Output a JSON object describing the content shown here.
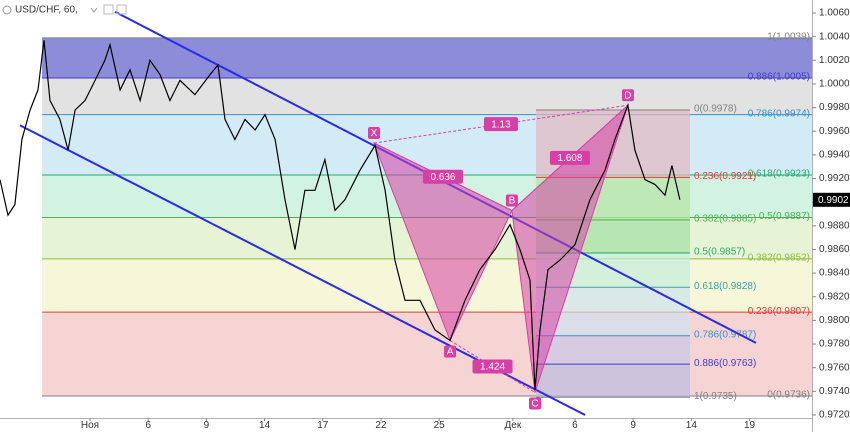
{
  "chart_data": {
    "type": "line",
    "title": "USD/CHF, 60,",
    "color": "#000000",
    "x": [
      -4.64,
      -4.23,
      -3.87,
      -3.51,
      -3.09,
      -2.68,
      -2.37,
      -2.06,
      -1.55,
      -1.13,
      -0.77,
      -0.26,
      0.26,
      0.77,
      1.03,
      1.55,
      2.06,
      2.58,
      3.09,
      3.61,
      4.12,
      4.64,
      5.41,
      6.19,
      6.6,
      6.96,
      7.47,
      7.99,
      8.51,
      9.02,
      9.54,
      10.05,
      10.57,
      11.08,
      11.6,
      12.11,
      12.63,
      13.14,
      13.92,
      14.69,
      15.21,
      15.72,
      16.24,
      17.01,
      17.78,
      18.56,
      19.33,
      20.1,
      20.88,
      21.65,
      22.16,
      22.68,
      22.94,
      23.2,
      23.61,
      24.23,
      25,
      25.77,
      26.55,
      27.06,
      27.73,
      28.09,
      28.61,
      29.12,
      29.64,
      30,
      30.41
    ],
    "values": [
      0.9919,
      0.9889,
      0.9898,
      0.9953,
      0.9978,
      0.9995,
      1.0037,
      0.9986,
      0.997,
      0.9944,
      0.9978,
      0.9986,
      1.0003,
      1.002,
      1.0033,
      0.9995,
      1.0012,
      0.9986,
      1.002,
      1.0008,
      0.9986,
      1.0003,
      0.9991,
      1.0008,
      1.0016,
      0.997,
      0.9953,
      0.997,
      0.9961,
      0.9974,
      0.9953,
      0.9902,
      0.986,
      0.991,
      0.991,
      0.9936,
      0.9893,
      0.9902,
      0.9927,
      0.9948,
      0.991,
      0.9851,
      0.9817,
      0.9817,
      0.9792,
      0.9783,
      0.9817,
      0.9843,
      0.986,
      0.9881,
      0.986,
      0.9834,
      0.9741,
      0.9792,
      0.9843,
      0.9851,
      0.9864,
      0.9902,
      0.9927,
      0.9953,
      0.9982,
      0.9944,
      0.9919,
      0.9915,
      0.9906,
      0.9931,
      0.9902
    ],
    "xlim": [
      -4.64,
      37.22
    ],
    "ylim": [
      0.97056,
      1.0071
    ],
    "xticks": [
      {
        "value": 0,
        "label": "Ноя"
      },
      {
        "value": 3,
        "label": "6"
      },
      {
        "value": 6,
        "label": "9"
      },
      {
        "value": 9,
        "label": "14"
      },
      {
        "value": 12,
        "label": "17"
      },
      {
        "value": 15,
        "label": "22"
      },
      {
        "value": 18,
        "label": "25"
      },
      {
        "value": 21.8,
        "label": "Дек"
      },
      {
        "value": 25,
        "label": "6"
      },
      {
        "value": 28,
        "label": "9"
      },
      {
        "value": 31,
        "label": "14"
      },
      {
        "value": 34,
        "label": "19"
      }
    ],
    "yticks": [
      {
        "value": 1.006,
        "label": "1.0060"
      },
      {
        "value": 1.004,
        "label": "1.0040"
      },
      {
        "value": 1.002,
        "label": "1.0020"
      },
      {
        "value": 1.0,
        "label": "1.0000"
      },
      {
        "value": 0.998,
        "label": "0.9980"
      },
      {
        "value": 0.996,
        "label": "0.9960"
      },
      {
        "value": 0.994,
        "label": "0.9940"
      },
      {
        "value": 0.992,
        "label": "0.9920"
      },
      {
        "value": 0.99,
        "label": "0.9900"
      },
      {
        "value": 0.988,
        "label": "0.9880"
      },
      {
        "value": 0.986,
        "label": "0.9860"
      },
      {
        "value": 0.984,
        "label": "0.9840"
      },
      {
        "value": 0.982,
        "label": "0.9820"
      },
      {
        "value": 0.98,
        "label": "0.9800"
      },
      {
        "value": 0.978,
        "label": "0.9780"
      },
      {
        "value": 0.976,
        "label": "0.9760"
      },
      {
        "value": 0.974,
        "label": "0.9740"
      },
      {
        "value": 0.972,
        "label": "0.9720"
      }
    ],
    "last_price": 0.9902,
    "fib_main": {
      "x": [
        -2.47,
        37.22
      ],
      "levels": [
        {
          "value": 1.0039,
          "label": "1(1.0039)",
          "color": "#808080",
          "fill": "#8c8cd9"
        },
        {
          "value": 1.0005,
          "label": "0.886(1.0005)",
          "color": "#3f3fbf",
          "fill": "#e2e2e2"
        },
        {
          "value": 0.9974,
          "label": "0.786(0.9974)",
          "color": "#3a8fc9",
          "fill": "#d3ebf7"
        },
        {
          "value": 0.9923,
          "label": "0.618(0.9923)",
          "color": "#2aa86a",
          "fill": "#d2f2e2"
        },
        {
          "value": 0.9887,
          "label": "0.5(0.9887)",
          "color": "#4caf50",
          "fill": "#e6f4d5"
        },
        {
          "value": 0.9852,
          "label": "0.382(0.9852)",
          "color": "#8fbc3f",
          "fill": "#f6f6d8"
        },
        {
          "value": 0.9807,
          "label": "0.236(0.9807)",
          "color": "#e23c3c",
          "fill": "#f7d4d4"
        },
        {
          "value": 0.9736,
          "label": "0(0.9736)",
          "color": "#808080"
        }
      ]
    },
    "fib_second": {
      "x": [
        22.99,
        30.93
      ],
      "levels": [
        {
          "value": 0.9978,
          "label": "0(0.9978)",
          "color": "#808080",
          "fill": "#e3b8c0"
        },
        {
          "value": 0.9921,
          "label": "0.236(0.9921)",
          "color": "#e23c3c",
          "fill": "#b5e6a5"
        },
        {
          "value": 0.9885,
          "label": "0.382(0.9885)",
          "color": "#4caf50",
          "fill": "#a3e0a3"
        },
        {
          "value": 0.9857,
          "label": "0.5(0.9857)",
          "color": "#2aa86a",
          "fill": "#c4eedd"
        },
        {
          "value": 0.9828,
          "label": "0.618(0.9828)",
          "color": "#3aa3a3",
          "fill": "#cfe2ef"
        },
        {
          "value": 0.9787,
          "label": "0.786(0.9787)",
          "color": "#3a8fc9",
          "fill": "#c8c8e8"
        },
        {
          "value": 0.9763,
          "label": "0.886(0.9763)",
          "color": "#3f3fbf",
          "fill": "#bcbce0"
        },
        {
          "value": 0.9735,
          "label": "1(0.9735)",
          "color": "#808080"
        }
      ]
    },
    "channel": [
      {
        "x": [
          1.29,
          34.33
        ],
        "y": [
          1.0061,
          0.9781
        ]
      },
      {
        "x": [
          -3.61,
          25.52
        ],
        "y": [
          0.9965,
          0.972
        ]
      }
    ],
    "channel_color": "#2a2aef",
    "pattern_color": "#d63fa5",
    "pattern": {
      "points": [
        {
          "label": "X",
          "x": 14.64,
          "y": 0.995
        },
        {
          "label": "A",
          "x": 18.56,
          "y": 0.9783
        },
        {
          "label": "B",
          "x": 21.75,
          "y": 0.9893
        },
        {
          "label": "C",
          "x": 22.94,
          "y": 0.9739
        },
        {
          "label": "D",
          "x": 27.73,
          "y": 0.9982
        }
      ],
      "ratios": [
        "1.13",
        "0.636",
        "1.608",
        "1.424"
      ]
    }
  }
}
